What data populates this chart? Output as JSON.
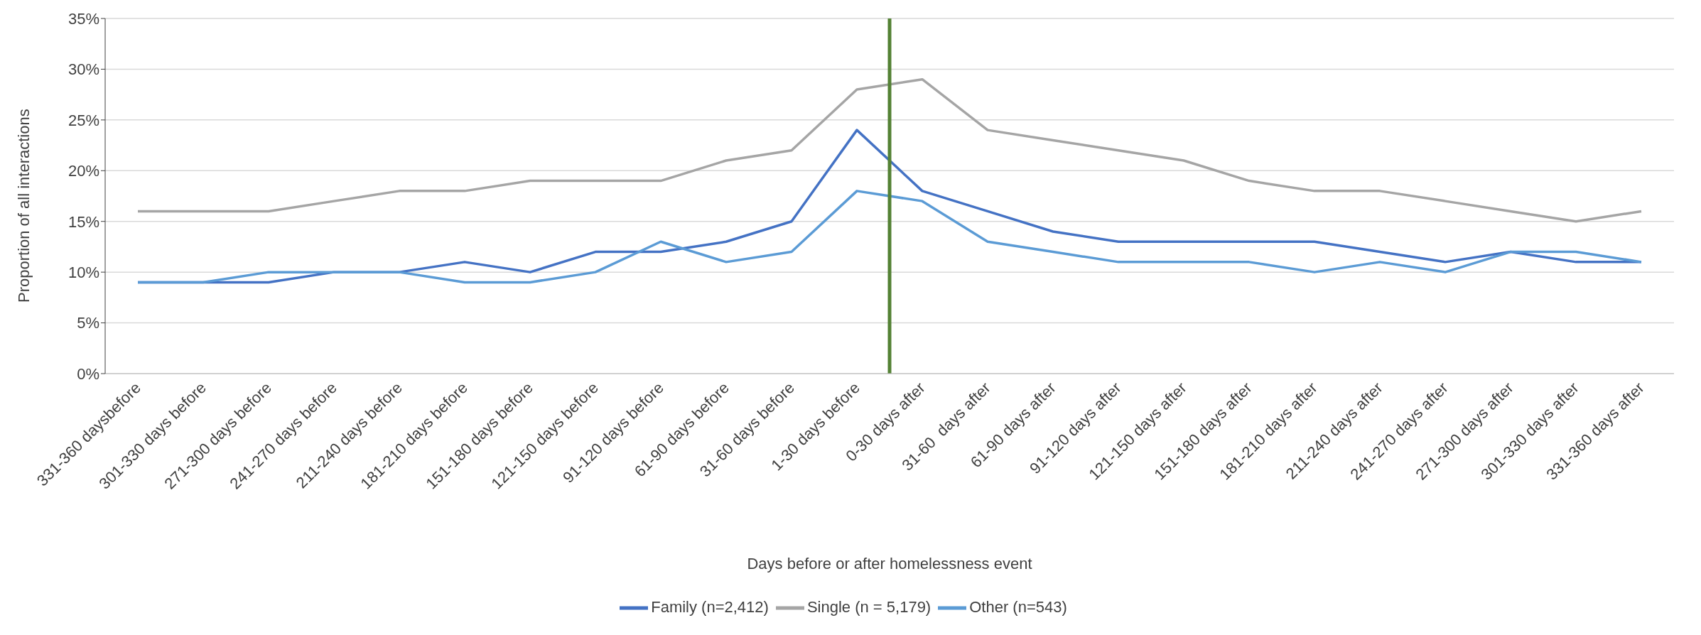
{
  "chart_data": {
    "type": "line",
    "xlabel": "Days before or after homelessness event",
    "ylabel": "Proportion of all interactions",
    "categories": [
      "331-360 daysbefore",
      "301-330 days before",
      "271-300 days before",
      "241-270 days before",
      "211-240 days before",
      "181-210 days before",
      "151-180 days before",
      "121-150 days before",
      "91-120 days before",
      "61-90 days before",
      "31-60 days before",
      "1-30 days before",
      "0-30 days after",
      "31-60  days after",
      "61-90 days after",
      "91-120 days after",
      "121-150 days after",
      "151-180 days after",
      "181-210 days after",
      "211-240 days after",
      "241-270 days after",
      "271-300 days after",
      "301-330 days after",
      "331-360 days after"
    ],
    "series": [
      {
        "name": "Family (n=2,412)",
        "color": "#4472c4",
        "values": [
          9,
          9,
          9,
          10,
          10,
          11,
          10,
          12,
          12,
          13,
          15,
          24,
          18,
          16,
          14,
          13,
          13,
          13,
          13,
          12,
          11,
          12,
          11,
          11
        ]
      },
      {
        "name": "Single (n = 5,179)",
        "color": "#a5a5a5",
        "values": [
          16,
          16,
          16,
          17,
          18,
          18,
          19,
          19,
          19,
          21,
          22,
          28,
          29,
          24,
          23,
          22,
          21,
          19,
          18,
          18,
          17,
          16,
          15,
          16
        ]
      },
      {
        "name": "Other (n=543)",
        "color": "#5b9bd5",
        "values": [
          9,
          9,
          10,
          10,
          10,
          9,
          9,
          10,
          13,
          11,
          12,
          18,
          17,
          13,
          12,
          11,
          11,
          11,
          10,
          11,
          10,
          12,
          12,
          11
        ]
      }
    ],
    "ylim": [
      0,
      35
    ],
    "yticks": [
      {
        "value": 0,
        "label": "0%"
      },
      {
        "value": 5,
        "label": "5%"
      },
      {
        "value": 10,
        "label": "10%"
      },
      {
        "value": 15,
        "label": "15%"
      },
      {
        "value": 20,
        "label": "20%"
      },
      {
        "value": 25,
        "label": "25%"
      },
      {
        "value": 30,
        "label": "30%"
      },
      {
        "value": 35,
        "label": "35%"
      }
    ],
    "grid": "y",
    "legend": "bottom",
    "marker": "none",
    "line_style": "solid",
    "ref_lines": [
      {
        "axis": "x",
        "value": "0-30 days after",
        "color": "#548235",
        "line_style": "solid"
      }
    ]
  }
}
